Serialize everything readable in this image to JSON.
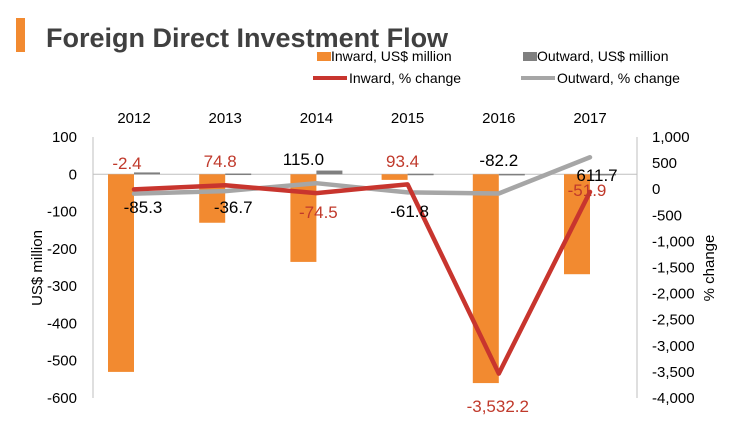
{
  "chart_data": {
    "type": "bar",
    "title": "Foreign Direct Investment Flow",
    "categories": [
      "2012",
      "2013",
      "2014",
      "2015",
      "2016",
      "2017"
    ],
    "y_left": {
      "label": "US$ million",
      "range": [
        -600,
        100
      ],
      "ticks": [
        "100",
        "0",
        "-100",
        "-200",
        "-300",
        "-400",
        "-500",
        "-600"
      ]
    },
    "y_right": {
      "label": "% change",
      "range": [
        -4000,
        1000
      ],
      "ticks": [
        "1,000",
        "500",
        "0",
        "-500",
        "-1,000",
        "-1,500",
        "-2,000",
        "-2,500",
        "-3,000",
        "-3,500",
        "-4,000"
      ]
    },
    "series": [
      {
        "name": "Inward, US$ million",
        "kind": "bar",
        "axis": "left",
        "color": "#f28a30",
        "values": [
          -530,
          -130,
          -235,
          -15,
          -560,
          -268
        ]
      },
      {
        "name": "Outward, US$ million",
        "kind": "bar",
        "axis": "left",
        "color": "#7f7f7f",
        "values": [
          5,
          2,
          10,
          1.5,
          1,
          1
        ]
      },
      {
        "name": "Inward, % change",
        "kind": "line",
        "axis": "right",
        "color": "#c8352e",
        "values": [
          -2.4,
          74.8,
          -74.5,
          93.4,
          -3532.2,
          -51.9
        ]
      },
      {
        "name": "Outward, % change",
        "kind": "line",
        "axis": "right",
        "color": "#a6a6a6",
        "values": [
          -85.3,
          -36.7,
          115.0,
          -61.8,
          -82.2,
          611.7
        ]
      }
    ],
    "data_labels": {
      "inward_pct": [
        "-2.4",
        "74.8",
        "-74.5",
        "93.4",
        "-3,532.2",
        "-51.9"
      ],
      "outward_pct": [
        "-85.3",
        "-36.7",
        "115.0",
        "-61.8",
        "-82.2",
        "611.7"
      ]
    },
    "legend": {
      "placement": "top-right",
      "columns": 2
    },
    "grid": false
  }
}
